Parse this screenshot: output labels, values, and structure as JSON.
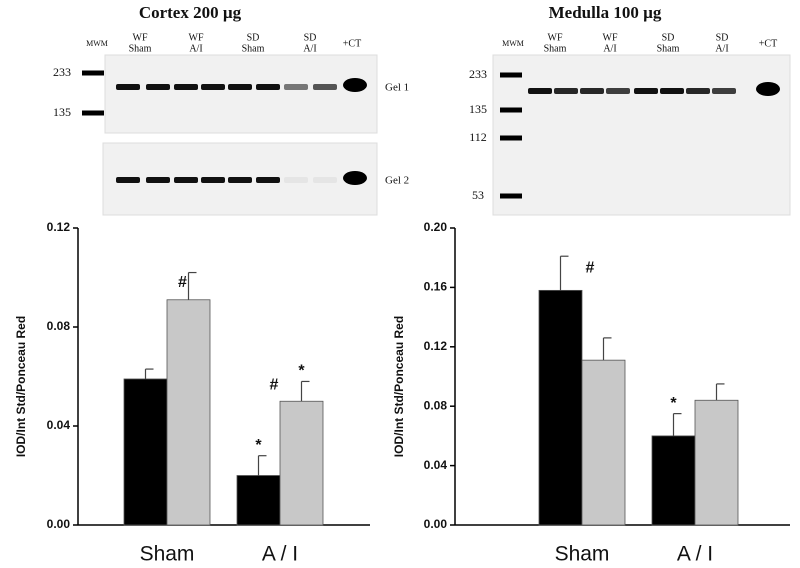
{
  "chart_data": [
    {
      "type": "bar",
      "title": "Cortex 200 µg",
      "ylabel": "IOD/Int Std/Ponceau Red",
      "categories": [
        "Sham",
        "A / I"
      ],
      "series": [
        {
          "color": "#000000",
          "values": [
            0.059,
            0.02
          ],
          "errors": [
            0.004,
            0.008
          ]
        },
        {
          "color": "#c8c8c8",
          "values": [
            0.091,
            0.05
          ],
          "errors": [
            0.011,
            0.008
          ]
        }
      ],
      "ylim": [
        0,
        0.12
      ],
      "yticks": [
        {
          "value": 0,
          "label": "0.00"
        },
        {
          "value": 0.04,
          "label": "0.04"
        },
        {
          "value": 0.08,
          "label": "0.08"
        },
        {
          "value": 0.12,
          "label": "0.12"
        }
      ],
      "annotations": [
        {
          "text": "#",
          "series": 1,
          "category": 0
        },
        {
          "text": "*",
          "series": 0,
          "category": 1
        },
        {
          "text": "#",
          "series": 1,
          "category": 1
        },
        {
          "text": "*",
          "series": 1,
          "category": 1
        }
      ]
    },
    {
      "type": "bar",
      "title": "Medulla 100 µg",
      "ylabel": "IOD/Int Std/Ponceau Red",
      "categories": [
        "Sham",
        "A / I"
      ],
      "series": [
        {
          "color": "#000000",
          "values": [
            0.158,
            0.06
          ],
          "errors": [
            0.023,
            0.015
          ]
        },
        {
          "color": "#c8c8c8",
          "values": [
            0.111,
            0.084
          ],
          "errors": [
            0.015,
            0.011
          ]
        }
      ],
      "ylim": [
        0,
        0.2
      ],
      "yticks": [
        {
          "value": 0,
          "label": "0.00"
        },
        {
          "value": 0.04,
          "label": "0.04"
        },
        {
          "value": 0.08,
          "label": "0.08"
        },
        {
          "value": 0.12,
          "label": "0.12"
        },
        {
          "value": 0.16,
          "label": "0.16"
        },
        {
          "value": 0.2,
          "label": "0.20"
        }
      ],
      "annotations": [
        {
          "text": "#",
          "series": 0,
          "category": 0
        },
        {
          "text": "*",
          "series": 0,
          "category": 1
        }
      ]
    }
  ],
  "gels": [
    {
      "lanes": [
        [
          "MWM"
        ],
        [
          "WF",
          "Sham"
        ],
        [
          "WF",
          "A/I"
        ],
        [
          "SD",
          "Sham"
        ],
        [
          "SD",
          "A/I"
        ],
        [
          "+CT"
        ]
      ],
      "markers": [
        233,
        135
      ],
      "gel_labels": [
        "Gel 1",
        "Gel 2"
      ]
    },
    {
      "lanes": [
        [
          "MWM"
        ],
        [
          "WF",
          "Sham"
        ],
        [
          "WF",
          "A/I"
        ],
        [
          "SD",
          "Sham"
        ],
        [
          "SD",
          "A/I"
        ],
        [
          "+CT"
        ]
      ],
      "markers": [
        233,
        135,
        112,
        53
      ]
    }
  ]
}
